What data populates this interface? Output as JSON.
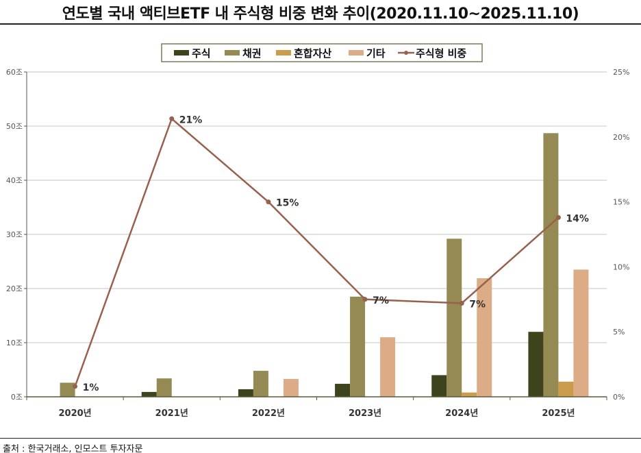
{
  "title": "연도별 국내 액티브ETF 내 주식형 비중 변화 추이(2020.11.10~2025.11.10)",
  "source": "출처 : 한국거래소, 인모스트 투자자문",
  "chart_data": {
    "type": "bar+line",
    "categories": [
      "2020년",
      "2021년",
      "2022년",
      "2023년",
      "2024년",
      "2025년"
    ],
    "series": [
      {
        "name": "주식",
        "type": "bar",
        "axis": "left",
        "color": "#3d431c",
        "values": [
          0,
          0.9,
          1.4,
          2.4,
          4.0,
          12.0
        ]
      },
      {
        "name": "채권",
        "type": "bar",
        "axis": "left",
        "color": "#958a53",
        "values": [
          2.6,
          3.4,
          4.8,
          18.5,
          29.2,
          48.7
        ]
      },
      {
        "name": "혼합자산",
        "type": "bar",
        "axis": "left",
        "color": "#cb9c4c",
        "values": [
          0,
          0,
          0,
          0,
          0.8,
          2.8
        ]
      },
      {
        "name": "기타",
        "type": "bar",
        "axis": "left",
        "color": "#dcac86",
        "values": [
          0,
          0,
          3.3,
          11.0,
          21.9,
          23.5
        ]
      },
      {
        "name": "주식형 비중",
        "type": "line",
        "axis": "right",
        "color": "#98614d",
        "values": [
          0.8,
          21.4,
          15.0,
          7.5,
          7.2,
          13.8
        ],
        "labels": [
          "1%",
          "21%",
          "15%",
          "7%",
          "7%",
          "14%"
        ]
      }
    ],
    "left_axis": {
      "ylim": [
        0,
        60
      ],
      "ticks": [
        "0조",
        "10조",
        "20조",
        "30조",
        "40조",
        "50조",
        "60조"
      ]
    },
    "right_axis": {
      "ylim": [
        0,
        25
      ],
      "ticks": [
        "0%",
        "5%",
        "10%",
        "15%",
        "20%",
        "25%"
      ]
    },
    "grid": true,
    "legend": "top-center"
  }
}
